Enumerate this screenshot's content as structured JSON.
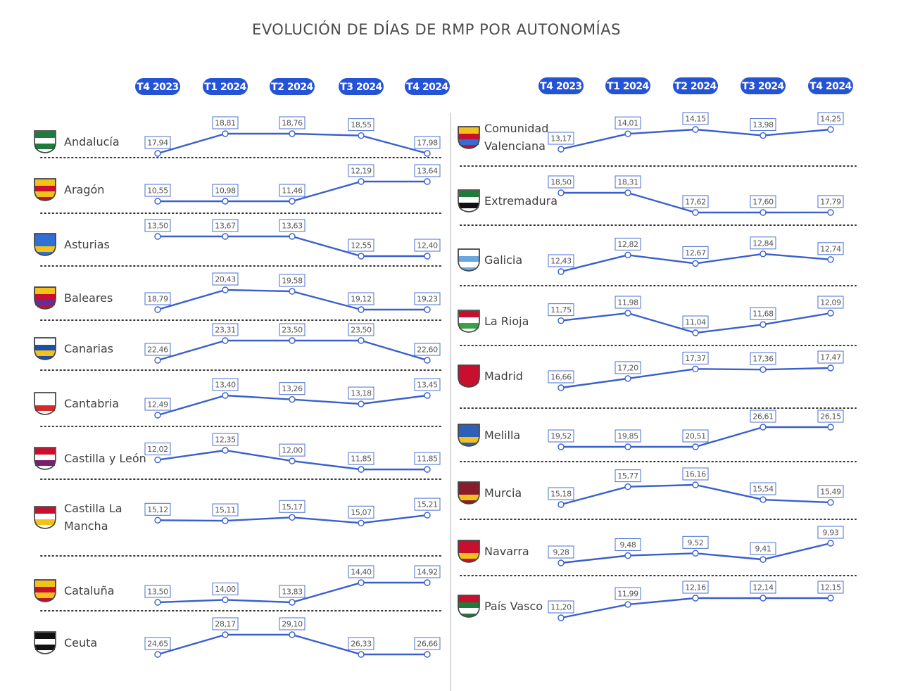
{
  "title": "EVOLUCIÓN DE DÍAS DE RMP POR AUTONOMÍAS",
  "colors": {
    "line": "#3a5fcd",
    "pill": "#2553d6",
    "box_border": "#4a6fd1",
    "dots": "#333333",
    "divider": "#bdbdbd"
  },
  "chart_data": {
    "type": "line",
    "title": "EVOLUCIÓN DE DÍAS DE RMP POR AUTONOMÍAS",
    "categories": [
      "T4 2023",
      "T1 2024",
      "T2 2024",
      "T3 2024",
      "T4 2024"
    ],
    "panels": [
      {
        "side": "left",
        "series": [
          {
            "name": "Andalucía",
            "lines": [
              "Andalucía"
            ],
            "icon": "andalucia-flag-icon",
            "values": [
              17.94,
              18.81,
              18.76,
              18.55,
              17.98
            ],
            "labels": [
              "17,94",
              "18,81",
              "18,76",
              "18,55",
              "17,98"
            ]
          },
          {
            "name": "Aragón",
            "lines": [
              "Aragón"
            ],
            "icon": "aragon-shield-icon",
            "values": [
              10.55,
              10.98,
              11.46,
              12.19,
              13.64
            ],
            "labels": [
              "10,55",
              "10,98",
              "11,46",
              "12,19",
              "13,64"
            ]
          },
          {
            "name": "Asturias",
            "lines": [
              "Asturias"
            ],
            "icon": "asturias-shield-icon",
            "values": [
              13.5,
              13.67,
              13.63,
              12.55,
              12.4
            ],
            "labels": [
              "13,50",
              "13,67",
              "13,63",
              "12,55",
              "12,40"
            ]
          },
          {
            "name": "Baleares",
            "lines": [
              "Baleares"
            ],
            "icon": "baleares-shield-icon",
            "values": [
              18.79,
              20.43,
              19.58,
              19.12,
              19.23
            ],
            "labels": [
              "18,79",
              "20,43",
              "19,58",
              "19,12",
              "19,23"
            ]
          },
          {
            "name": "Canarias",
            "lines": [
              "Canarias"
            ],
            "icon": "canarias-shield-icon",
            "values": [
              22.46,
              23.31,
              23.5,
              23.5,
              22.6
            ],
            "labels": [
              "22,46",
              "23,31",
              "23,50",
              "23,50",
              "22,60"
            ]
          },
          {
            "name": "Cantabria",
            "lines": [
              "Cantabria"
            ],
            "icon": "cantabria-shield-icon",
            "values": [
              12.49,
              13.4,
              13.26,
              13.18,
              13.45
            ],
            "labels": [
              "12,49",
              "13,40",
              "13,26",
              "13,18",
              "13,45"
            ]
          },
          {
            "name": "Castilla y León",
            "lines": [
              "Castilla y León"
            ],
            "icon": "castilla-leon-shield-icon",
            "values": [
              12.02,
              12.35,
              12.0,
              11.85,
              11.85
            ],
            "labels": [
              "12,02",
              "12,35",
              "12,00",
              "11,85",
              "11,85"
            ]
          },
          {
            "name": "Castilla La Mancha",
            "lines": [
              "Castilla La",
              "Mancha"
            ],
            "icon": "castilla-la-mancha-shield-icon",
            "values": [
              15.12,
              15.11,
              15.17,
              15.07,
              15.21
            ],
            "labels": [
              "15,12",
              "15,11",
              "15,17",
              "15,07",
              "15,21"
            ]
          },
          {
            "name": "Cataluña",
            "lines": [
              "Cataluña"
            ],
            "icon": "cataluna-shield-icon",
            "values": [
              13.5,
              14.0,
              13.83,
              14.4,
              14.92
            ],
            "labels": [
              "13,50",
              "14,00",
              "13,83",
              "14,40",
              "14,92"
            ]
          },
          {
            "name": "Ceuta",
            "lines": [
              "Ceuta"
            ],
            "icon": "ceuta-shield-icon",
            "values": [
              24.65,
              28.17,
              29.1,
              26.33,
              26.66
            ],
            "labels": [
              "24,65",
              "28,17",
              "29,10",
              "26,33",
              "26,66"
            ]
          }
        ]
      },
      {
        "side": "right",
        "series": [
          {
            "name": "Comunidad Valenciana",
            "lines": [
              "Comunidad",
              "Valenciana"
            ],
            "icon": "valenciana-shield-icon",
            "values": [
              13.17,
              14.01,
              14.15,
              13.98,
              14.25
            ],
            "labels": [
              "13,17",
              "14,01",
              "14,15",
              "13,98",
              "14,25"
            ]
          },
          {
            "name": "Extremadura",
            "lines": [
              "Extremadura"
            ],
            "icon": "extremadura-shield-icon",
            "values": [
              18.5,
              18.31,
              17.62,
              17.6,
              17.79
            ],
            "labels": [
              "18,50",
              "18,31",
              "17,62",
              "17,60",
              "17,79"
            ]
          },
          {
            "name": "Galicia",
            "lines": [
              "Galicia"
            ],
            "icon": "galicia-shield-icon",
            "values": [
              12.43,
              12.82,
              12.67,
              12.84,
              12.74
            ],
            "labels": [
              "12,43",
              "12,82",
              "12,67",
              "12,84",
              "12,74"
            ]
          },
          {
            "name": "La Rioja",
            "lines": [
              "La Rioja"
            ],
            "icon": "la-rioja-shield-icon",
            "values": [
              11.75,
              11.98,
              11.04,
              11.68,
              12.09
            ],
            "labels": [
              "11,75",
              "11,98",
              "11,04",
              "11,68",
              "12,09"
            ]
          },
          {
            "name": "Madrid",
            "lines": [
              "Madrid"
            ],
            "icon": "madrid-shield-icon",
            "values": [
              16.66,
              17.2,
              17.37,
              17.36,
              17.47
            ],
            "labels": [
              "16,66",
              "17,20",
              "17,37",
              "17,36",
              "17,47"
            ]
          },
          {
            "name": "Melilla",
            "lines": [
              "Melilla"
            ],
            "icon": "melilla-shield-icon",
            "values": [
              19.52,
              19.85,
              20.51,
              26.61,
              26.15
            ],
            "labels": [
              "19,52",
              "19,85",
              "20,51",
              "26,61",
              "26,15"
            ]
          },
          {
            "name": "Murcia",
            "lines": [
              "Murcia"
            ],
            "icon": "murcia-shield-icon",
            "values": [
              15.18,
              15.77,
              16.16,
              15.54,
              15.49
            ],
            "labels": [
              "15,18",
              "15,77",
              "16,16",
              "15,54",
              "15,49"
            ]
          },
          {
            "name": "Navarra",
            "lines": [
              "Navarra"
            ],
            "icon": "navarra-shield-icon",
            "values": [
              9.28,
              9.48,
              9.52,
              9.41,
              9.93
            ],
            "labels": [
              "9,28",
              "9,48",
              "9,52",
              "9,41",
              "9,93"
            ]
          },
          {
            "name": "País Vasco",
            "lines": [
              "País Vasco"
            ],
            "icon": "pais-vasco-shield-icon",
            "values": [
              11.2,
              11.99,
              12.16,
              12.14,
              12.15
            ],
            "labels": [
              "11,20",
              "11,99",
              "12,16",
              "12,14",
              "12,15"
            ]
          }
        ]
      }
    ]
  }
}
